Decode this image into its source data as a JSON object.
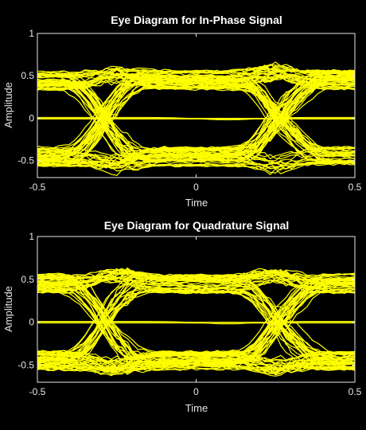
{
  "chart_data": [
    {
      "type": "line",
      "title": "Eye Diagram for In-Phase Signal",
      "xlabel": "Time",
      "ylabel": "Amplitude",
      "xlim": [
        -0.5,
        0.5
      ],
      "ylim": [
        -0.7,
        1
      ],
      "xticks": [
        -0.5,
        0,
        0.5
      ],
      "xtick_labels": [
        "-0.5",
        "0",
        "0.5"
      ],
      "yticks": [
        -0.5,
        0,
        0.5,
        1
      ],
      "ytick_labels": [
        "-0.5",
        "0",
        "0.5",
        "1"
      ],
      "grid": false,
      "series_color": "#ffff00",
      "background_color": "#000000",
      "axes_color": "#e6e6e6",
      "eye": {
        "symbol_levels": [
          -0.45,
          0.45
        ],
        "transition_times": [
          -0.28,
          0.28
        ],
        "peak_times": [
          -0.25,
          0.25
        ],
        "open_eye_center": 0,
        "crossing_amplitude": 0
      }
    },
    {
      "type": "line",
      "title": "Eye Diagram for Quadrature Signal",
      "xlabel": "Time",
      "ylabel": "Amplitude",
      "xlim": [
        -0.5,
        0.5
      ],
      "ylim": [
        -0.7,
        1
      ],
      "xticks": [
        -0.5,
        0,
        0.5
      ],
      "xtick_labels": [
        "-0.5",
        "0",
        "0.5"
      ],
      "yticks": [
        -0.5,
        0,
        0.5,
        1
      ],
      "ytick_labels": [
        "-0.5",
        "0",
        "0.5",
        "1"
      ],
      "grid": false,
      "series_color": "#ffff00",
      "background_color": "#000000",
      "axes_color": "#e6e6e6",
      "eye": {
        "symbol_levels": [
          -0.45,
          0.45
        ],
        "transition_times": [
          -0.28,
          0.28
        ],
        "peak_times": [
          -0.25,
          0.25
        ],
        "open_eye_center": 0,
        "crossing_amplitude": 0
      }
    }
  ]
}
